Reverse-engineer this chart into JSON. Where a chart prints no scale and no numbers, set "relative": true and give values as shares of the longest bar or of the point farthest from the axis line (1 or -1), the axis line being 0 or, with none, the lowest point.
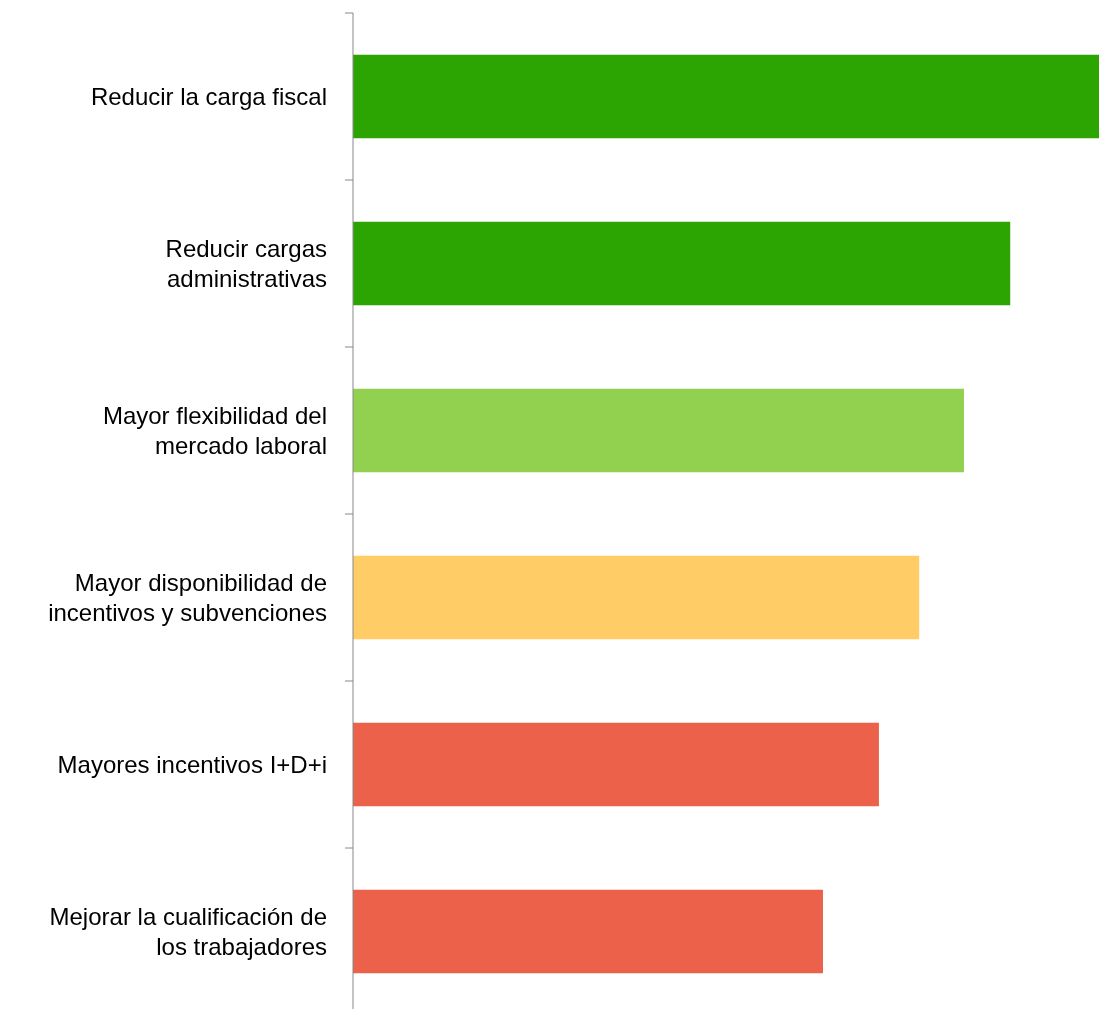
{
  "chart_data": {
    "type": "bar",
    "orientation": "horizontal",
    "relative": true,
    "categories": [
      "Reducir la carga fiscal",
      "Reducir cargas administrativas",
      "Mayor flexibilidad del mercado laboral",
      "Mayor disponibilidad de incentivos y subvenciones",
      "Mayores incentivos I+D+i",
      "Mejorar la cualificación de los trabajadores"
    ],
    "values": [
      1,
      0.881,
      0.819,
      0.759,
      0.705,
      0.63
    ],
    "colors": [
      "#2ca502",
      "#2ca502",
      "#92d050",
      "#ffcc66",
      "#eb614a",
      "#eb614a"
    ],
    "grid": false
  }
}
